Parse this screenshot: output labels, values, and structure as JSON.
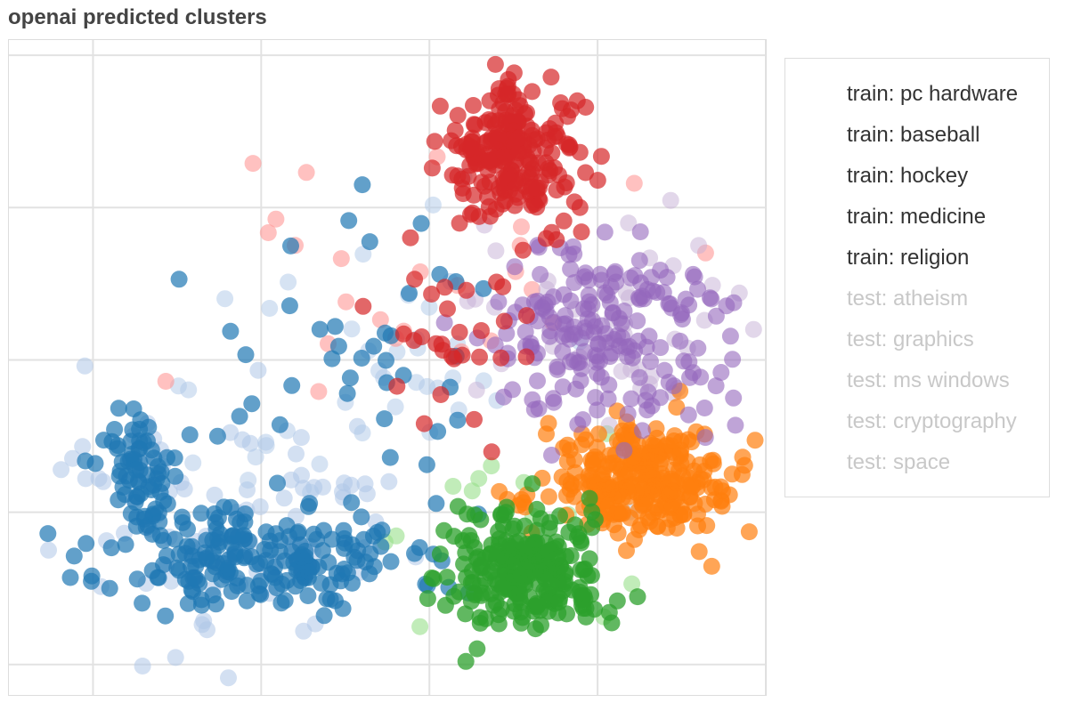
{
  "chart_data": {
    "type": "scatter",
    "title": "openai predicted clusters",
    "xlabel": "",
    "ylabel": "",
    "xlim": [
      -0.5,
      4.0
    ],
    "ylim": [
      -0.2,
      4.1
    ],
    "grid": true,
    "legend_placement": "right",
    "series": [
      {
        "name": "train: pc hardware",
        "color": "#1f77b4",
        "opacity": 0.7,
        "visible": true,
        "clusters": [
          {
            "cx": 1.0,
            "cy": 0.7,
            "sx": 0.45,
            "sy": 0.18,
            "n": 200,
            "seed": 11
          },
          {
            "cx": 0.3,
            "cy": 1.25,
            "sx": 0.13,
            "sy": 0.22,
            "n": 70,
            "seed": 12
          },
          {
            "cx": 1.55,
            "cy": 1.9,
            "sx": 0.45,
            "sy": 0.6,
            "n": 45,
            "seed": 13
          }
        ]
      },
      {
        "name": "train: baseball",
        "color": "#ff7f0e",
        "opacity": 0.7,
        "visible": true,
        "clusters": [
          {
            "cx": 3.28,
            "cy": 1.2,
            "sx": 0.28,
            "sy": 0.18,
            "n": 300,
            "seed": 21
          }
        ]
      },
      {
        "name": "train: hockey",
        "color": "#2ca02c",
        "opacity": 0.75,
        "visible": true,
        "clusters": [
          {
            "cx": 2.55,
            "cy": 0.6,
            "sx": 0.25,
            "sy": 0.2,
            "n": 250,
            "seed": 31
          }
        ]
      },
      {
        "name": "train: medicine",
        "color": "#d62728",
        "opacity": 0.7,
        "visible": true,
        "clusters": [
          {
            "cx": 2.5,
            "cy": 3.35,
            "sx": 0.2,
            "sy": 0.22,
            "n": 230,
            "seed": 41
          },
          {
            "cx": 2.05,
            "cy": 2.2,
            "sx": 0.28,
            "sy": 0.3,
            "n": 30,
            "seed": 42
          }
        ]
      },
      {
        "name": "train: religion",
        "color": "#9467bd",
        "opacity": 0.6,
        "visible": true,
        "clusters": [
          {
            "cx": 3.05,
            "cy": 2.15,
            "sx": 0.38,
            "sy": 0.32,
            "n": 200,
            "seed": 51
          }
        ]
      },
      {
        "name": "test: atheism",
        "color": "#c5b0d5",
        "opacity": 0.5,
        "visible": false,
        "clusters": [
          {
            "cx": 3.0,
            "cy": 2.3,
            "sx": 0.5,
            "sy": 0.4,
            "n": 40,
            "seed": 61
          }
        ]
      },
      {
        "name": "test: graphics",
        "color": "#aec7e8",
        "opacity": 0.55,
        "visible": false,
        "clusters": [
          {
            "cx": 0.8,
            "cy": 0.9,
            "sx": 0.6,
            "sy": 0.45,
            "n": 90,
            "seed": 71
          }
        ]
      },
      {
        "name": "test: ms windows",
        "color": "#aec7e8",
        "opacity": 0.5,
        "visible": false,
        "clusters": [
          {
            "cx": 1.6,
            "cy": 1.9,
            "sx": 0.5,
            "sy": 0.55,
            "n": 40,
            "seed": 81
          }
        ]
      },
      {
        "name": "test: cryptography",
        "color": "#ff9896",
        "opacity": 0.6,
        "visible": false,
        "clusters": [
          {
            "cx": 1.9,
            "cy": 2.5,
            "sx": 0.6,
            "sy": 0.4,
            "n": 25,
            "seed": 91
          }
        ]
      },
      {
        "name": "test: space",
        "color": "#98df8a",
        "opacity": 0.6,
        "visible": false,
        "clusters": [
          {
            "cx": 2.4,
            "cy": 0.9,
            "sx": 0.4,
            "sy": 0.3,
            "n": 15,
            "seed": 101
          }
        ]
      }
    ]
  },
  "legend": {
    "active_text_color": "#333333",
    "inactive_text_color": "#c8c8c8"
  }
}
